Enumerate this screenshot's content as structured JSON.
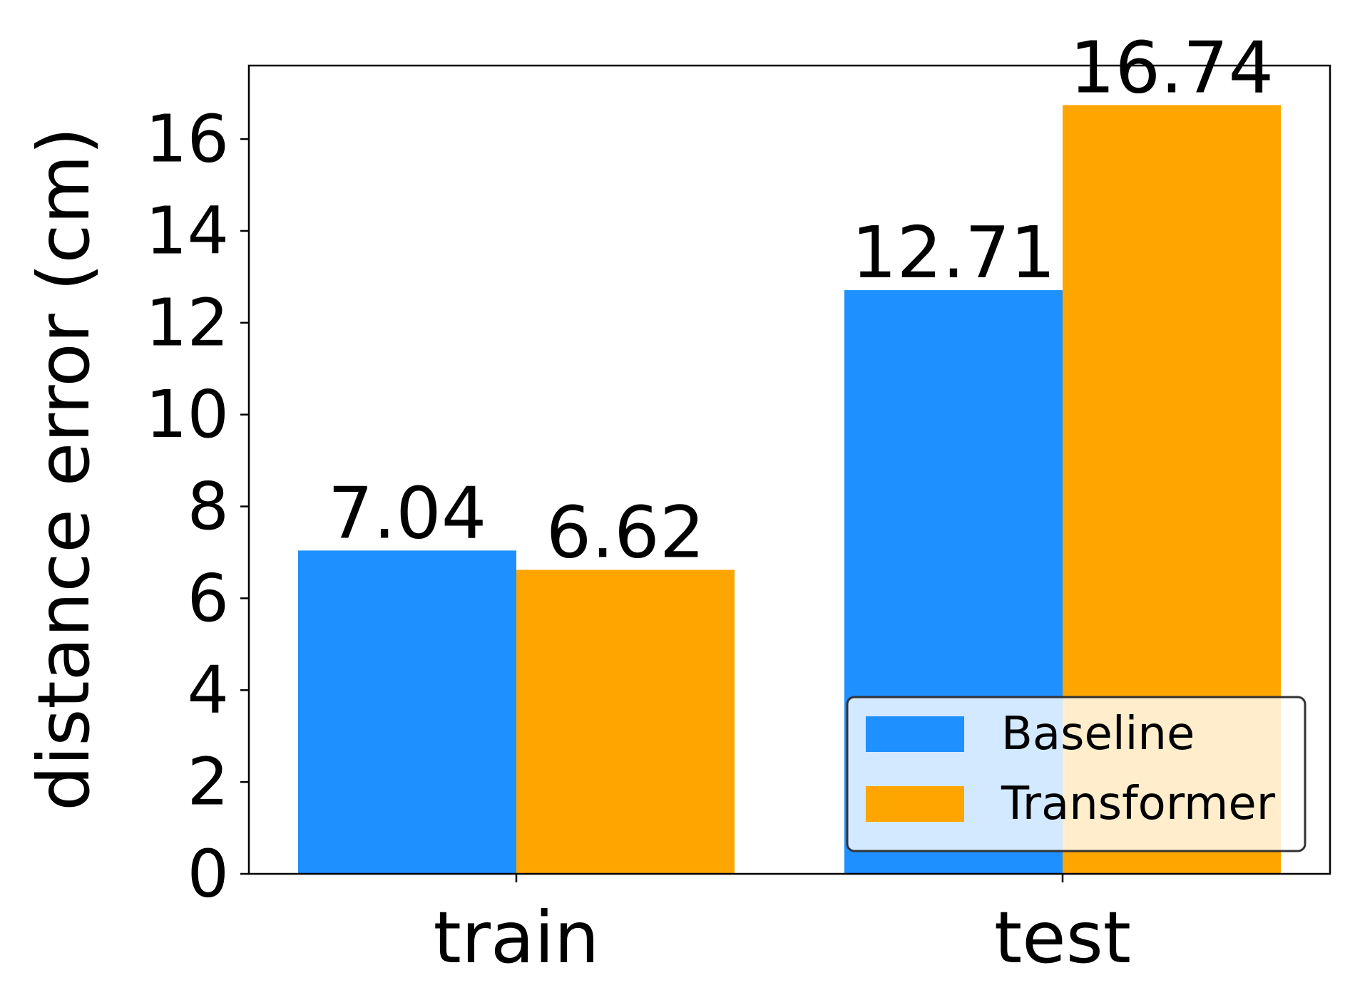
{
  "chart_data": {
    "type": "bar",
    "title": "",
    "xlabel": "",
    "ylabel": "distance error (cm)",
    "categories": [
      "train",
      "test"
    ],
    "series": [
      {
        "name": "Baseline",
        "values": [
          7.04,
          12.71
        ],
        "labels": [
          "7.04",
          "12.71"
        ],
        "color": "#1E90FF"
      },
      {
        "name": "Transformer",
        "values": [
          6.62,
          16.74
        ],
        "labels": [
          "6.62",
          "16.74"
        ],
        "color": "#FFA500"
      }
    ],
    "ylim": [
      0,
      17.6
    ],
    "yticks": [
      0,
      2,
      4,
      6,
      8,
      10,
      12,
      14,
      16
    ],
    "ytick_labels": [
      "0",
      "2",
      "4",
      "6",
      "8",
      "10",
      "12",
      "14",
      "16"
    ],
    "grid": false,
    "legend": {
      "placement": "lower-right"
    }
  }
}
